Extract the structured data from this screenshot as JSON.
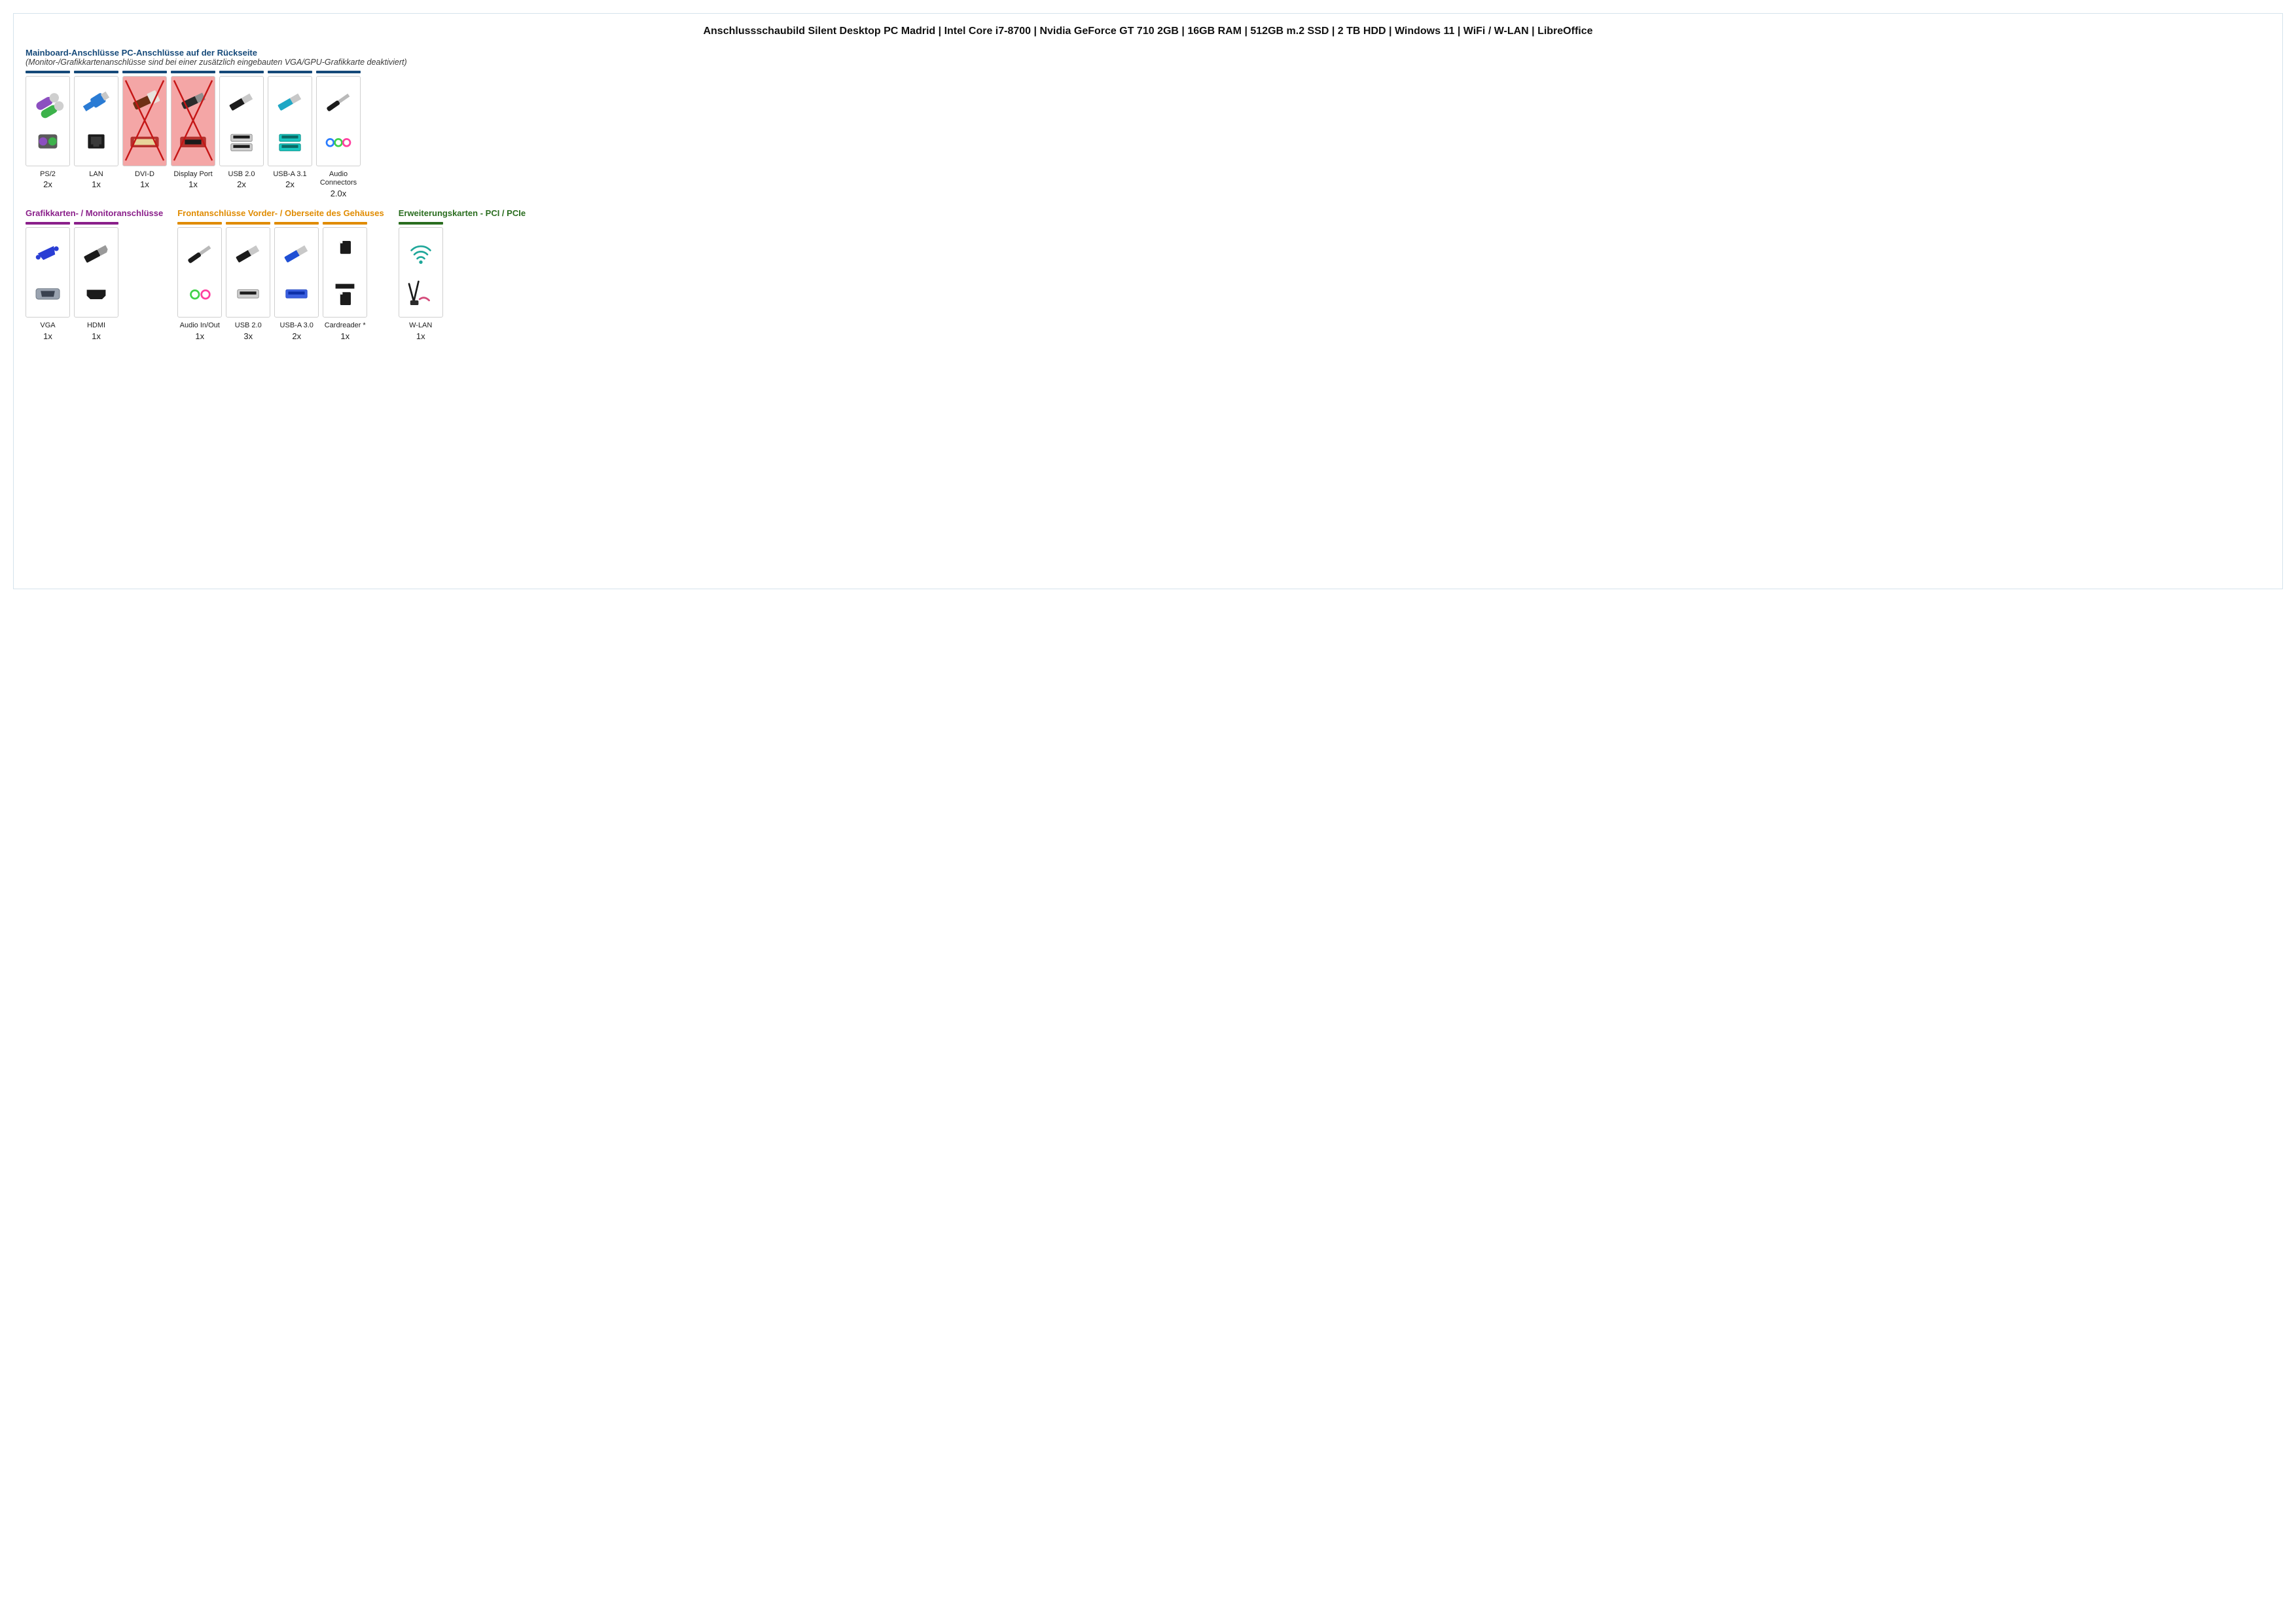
{
  "title": "Anschlussschaubild Silent Desktop PC Madrid | Intel Core i7-8700 | Nvidia GeForce GT 710 2GB | 16GB RAM | 512GB m.2 SSD | 2 TB HDD | Windows 11 | WiFi / W-LAN | LibreOffice",
  "subtitle": "(Monitor-/Grafikkartenanschlüsse sind bei einer zusätzlich eingebauten VGA/GPU-Grafikkarte deaktiviert)",
  "tile": {
    "width": 68,
    "height": 138,
    "border_color": "#cfcfcf",
    "disabled_bg": "#f4a6a6",
    "cross_color": "#c51616"
  },
  "sections": {
    "mainboard": {
      "heading": "Mainboard-Anschlüsse PC-Anschlüsse auf der Rückseite",
      "heading_color": "#164a7a",
      "bar_color": "#164a7a",
      "items": [
        {
          "id": "ps2",
          "label": "PS/2",
          "count": "2x",
          "disabled": false,
          "icon": "ps2"
        },
        {
          "id": "lan",
          "label": "LAN",
          "count": "1x",
          "disabled": false,
          "icon": "lan"
        },
        {
          "id": "dvid",
          "label": "DVI-D",
          "count": "1x",
          "disabled": true,
          "icon": "dvid"
        },
        {
          "id": "dp",
          "label": "Display Port",
          "count": "1x",
          "disabled": true,
          "icon": "dp"
        },
        {
          "id": "usb20",
          "label": "USB 2.0",
          "count": "2x",
          "disabled": false,
          "icon": "usb20"
        },
        {
          "id": "usba31",
          "label": "USB-A 3.1",
          "count": "2x",
          "disabled": false,
          "icon": "usba31"
        },
        {
          "id": "audio",
          "label": "Audio Connectors",
          "count": "2.0x",
          "disabled": false,
          "icon": "audio3"
        }
      ]
    },
    "gpu": {
      "heading": "Grafikkarten- / Monitoranschlüsse",
      "heading_color": "#8a1f8a",
      "bar_color": "#8a1f8a",
      "items": [
        {
          "id": "vga",
          "label": "VGA",
          "count": "1x",
          "disabled": false,
          "icon": "vga"
        },
        {
          "id": "hdmi",
          "label": "HDMI",
          "count": "1x",
          "disabled": false,
          "icon": "hdmi"
        }
      ]
    },
    "front": {
      "heading": "Frontanschlüsse Vorder- / Oberseite des Gehäuses",
      "heading_color": "#e08b00",
      "bar_color": "#e08b00",
      "items": [
        {
          "id": "audioio",
          "label": "Audio In/Out",
          "count": "1x",
          "disabled": false,
          "icon": "audio2"
        },
        {
          "id": "fusb20",
          "label": "USB 2.0",
          "count": "3x",
          "disabled": false,
          "icon": "usb20w"
        },
        {
          "id": "fusba30",
          "label": "USB-A 3.0",
          "count": "2x",
          "disabled": false,
          "icon": "usba30"
        },
        {
          "id": "card",
          "label": "Cardreader *",
          "count": "1x",
          "disabled": false,
          "icon": "cardreader"
        }
      ]
    },
    "pci": {
      "heading": "Erweiterungskarten - PCI / PCIe",
      "heading_color": "#2a6d1f",
      "bar_color": "#2a6d1f",
      "items": [
        {
          "id": "wlan",
          "label": "W-LAN",
          "count": "1x",
          "disabled": false,
          "icon": "wlan"
        }
      ]
    }
  },
  "palette": {
    "ps2_violet": "#8c4fc0",
    "ps2_green": "#3db24b",
    "lan_cable": "#2a7bd4",
    "lan_port": "#1b1b1b",
    "dvi_port": "#b5322f",
    "dvi_plug": "#6e3015",
    "dp_port": "#b5322f",
    "dp_plug": "#2a2a2a",
    "usb_black": "#1b1b1b",
    "usb_silver": "#c8c8c8",
    "usb3_blue": "#1fa7c5",
    "usb3_port": "#18c6c0",
    "audio_blue": "#2a7cff",
    "audio_green": "#3fd24a",
    "audio_pink": "#ff3fa0",
    "vga_blue": "#2a3ed4",
    "vga_port": "#9aa3b0",
    "hdmi_black": "#1b1b1b",
    "wifi_teal": "#1fa79a",
    "wifi_antenna": "#1b1b1b",
    "wifi_accent": "#d44a7a"
  }
}
